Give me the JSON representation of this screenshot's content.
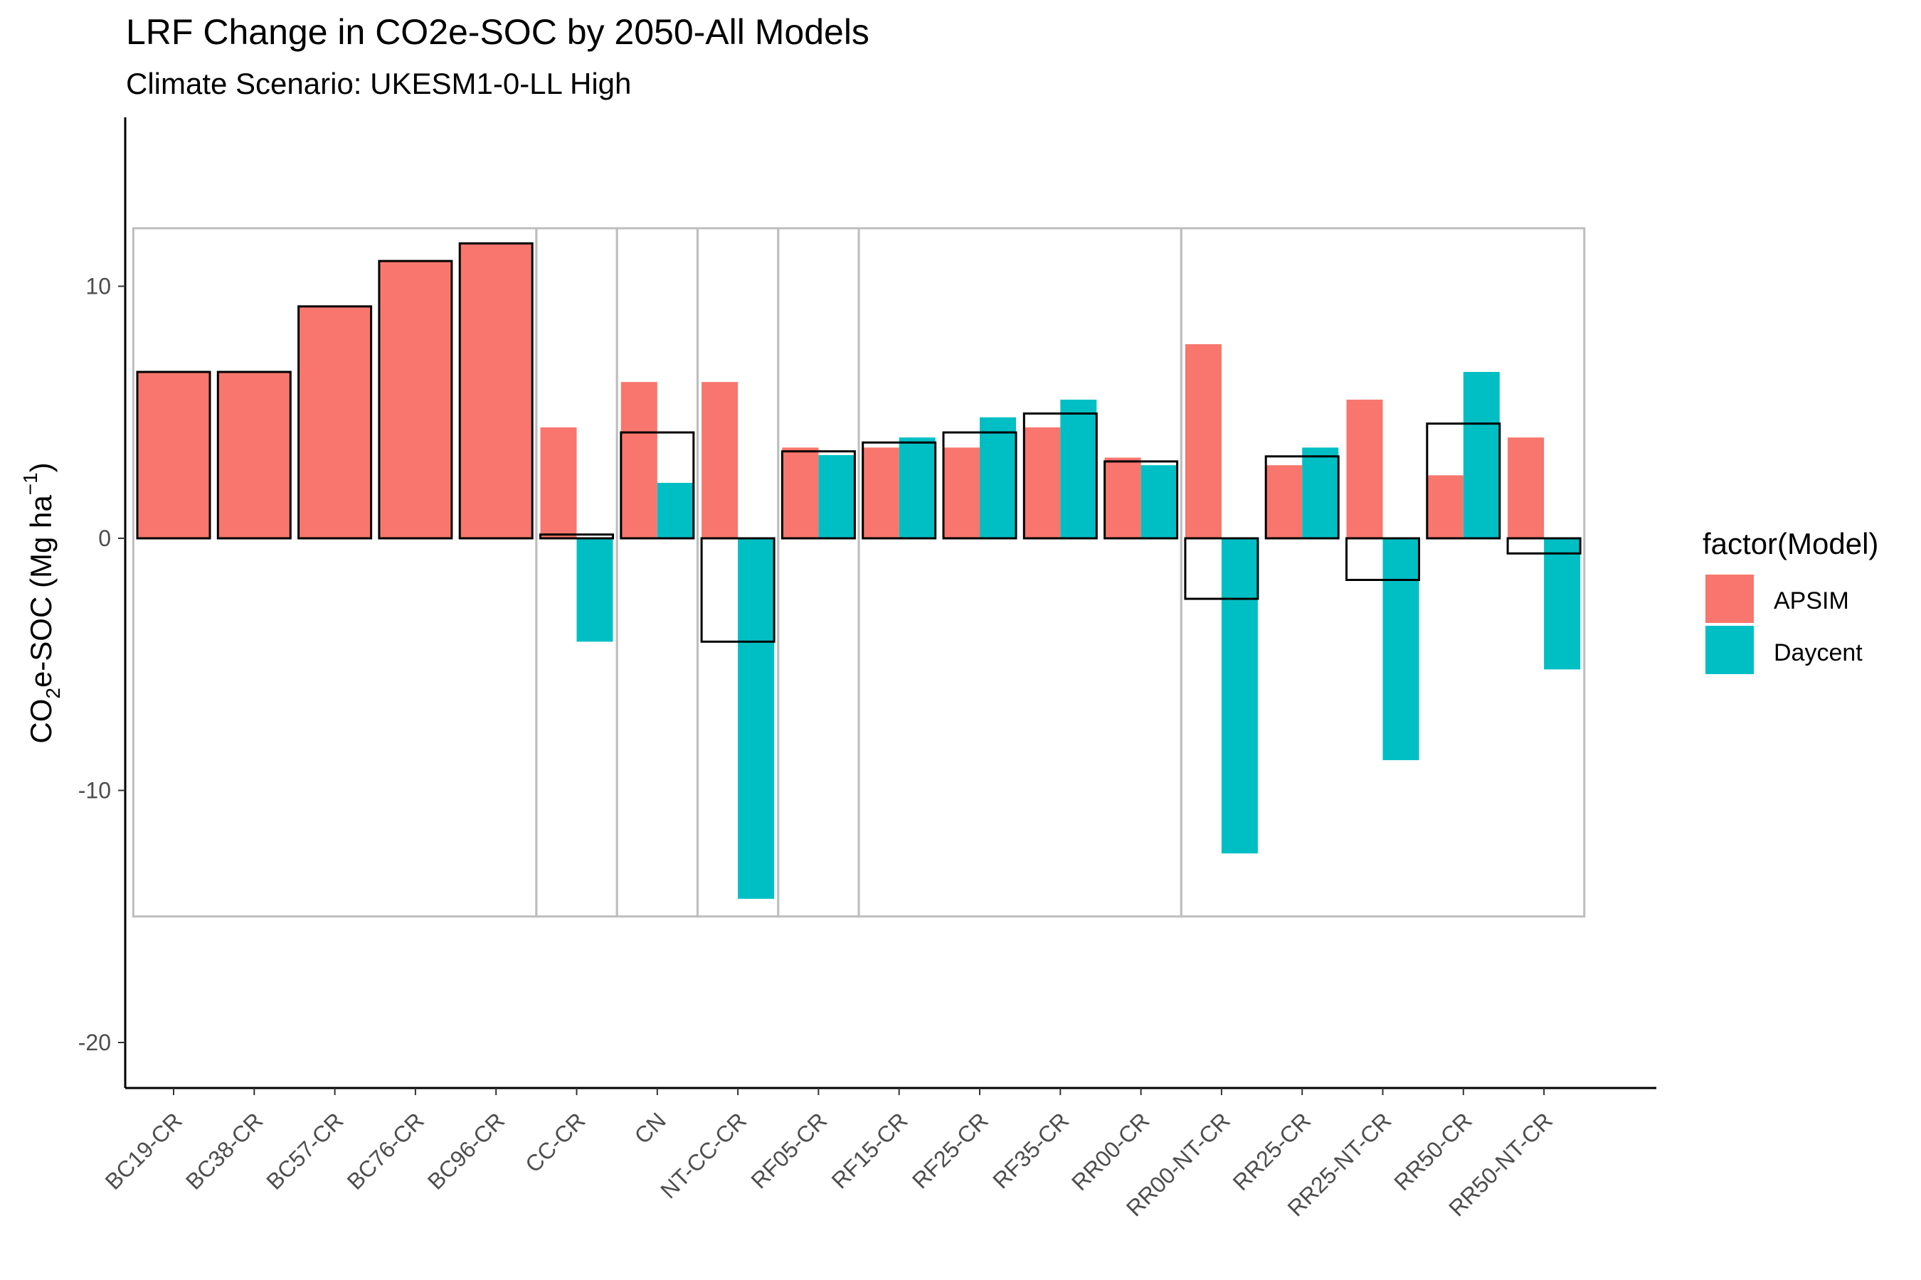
{
  "chart_data": {
    "type": "bar",
    "title": "LRF Change in CO2e-SOC by 2050-All Models",
    "subtitle": "Climate Scenario: UKESM1-0-LL High",
    "ylabel_main": "CO",
    "ylabel_sub": "2",
    "ylabel_rest": "e-SOC (Mg ha",
    "ylabel_sup": "−1",
    "ylabel_close": ")",
    "xlabel": "",
    "ylim": [
      -22,
      16.5
    ],
    "yticks": [
      {
        "value": 10,
        "label": "10"
      },
      {
        "value": 0,
        "label": "0"
      },
      {
        "value": -10,
        "label": "-10"
      },
      {
        "value": -20,
        "label": "-20"
      }
    ],
    "categories": [
      "BC19-CR",
      "BC38-CR",
      "BC57-CR",
      "BC76-CR",
      "BC96-CR",
      "CC-CR",
      "CN",
      "NT-CC-CR",
      "RF05-CR",
      "RF15-CR",
      "RF25-CR",
      "RF35-CR",
      "RR00-CR",
      "RR00-NT-CR",
      "RR25-CR",
      "RR25-NT-CR",
      "RR50-CR",
      "RR50-NT-CR"
    ],
    "series": [
      {
        "name": "APSIM",
        "color": "#F8766D",
        "values": [
          6.6,
          6.6,
          9.2,
          11.0,
          11.7,
          4.4,
          6.2,
          6.2,
          3.6,
          3.6,
          3.6,
          4.4,
          3.2,
          7.7,
          2.9,
          5.5,
          2.5,
          4.0
        ]
      },
      {
        "name": "Daycent",
        "color": "#00BFC4",
        "values": [
          null,
          null,
          null,
          null,
          null,
          -4.1,
          2.2,
          -14.3,
          3.3,
          4.0,
          4.8,
          5.5,
          2.9,
          -12.5,
          3.6,
          -8.8,
          6.6,
          -5.2
        ]
      }
    ],
    "mean_outline": [
      6.6,
      6.6,
      9.2,
      11.0,
      11.7,
      0.15,
      4.2,
      -4.1,
      3.45,
      3.8,
      4.2,
      4.95,
      3.05,
      -2.4,
      3.25,
      -1.65,
      4.55,
      -0.6
    ],
    "groups": [
      {
        "start": 0,
        "end": 4
      },
      {
        "start": 5,
        "end": 5
      },
      {
        "start": 6,
        "end": 6
      },
      {
        "start": 7,
        "end": 7
      },
      {
        "start": 8,
        "end": 8
      },
      {
        "start": 9,
        "end": 12
      },
      {
        "start": 13,
        "end": 17
      }
    ],
    "group_box_range": [
      -15,
      12.3
    ],
    "grid": false,
    "legend": {
      "title": "factor(Model)",
      "position": "right",
      "items": [
        {
          "label": "APSIM",
          "color": "#F8766D"
        },
        {
          "label": "Daycent",
          "color": "#00BFC4"
        }
      ]
    }
  }
}
